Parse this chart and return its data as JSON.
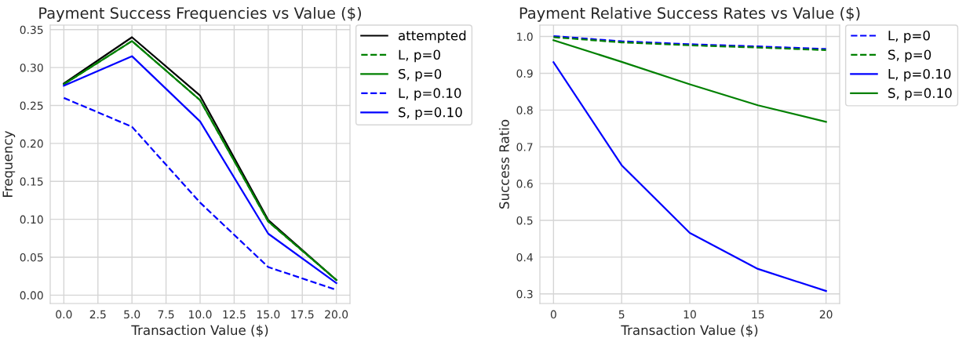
{
  "chart_data": [
    {
      "type": "line",
      "title": "Payment Success Frequencies vs Value ($)",
      "xlabel": "Transaction Value ($)",
      "ylabel": "Frequency",
      "x": [
        0,
        5,
        10,
        15,
        20
      ],
      "series": [
        {
          "name": "attempted",
          "color": "#000000",
          "line_style": "solid",
          "values": [
            0.279,
            0.34,
            0.263,
            0.099,
            0.02
          ]
        },
        {
          "name": "L, p=0",
          "color": "#008000",
          "line_style": "dashed",
          "values": [
            0.278,
            0.335,
            0.257,
            0.097,
            0.02
          ]
        },
        {
          "name": "S, p=0",
          "color": "#008000",
          "line_style": "solid",
          "values": [
            0.278,
            0.335,
            0.257,
            0.097,
            0.02
          ]
        },
        {
          "name": "L, p=0.10",
          "color": "#0000ff",
          "line_style": "dashed",
          "values": [
            0.26,
            0.222,
            0.122,
            0.037,
            0.007
          ]
        },
        {
          "name": "S, p=0.10",
          "color": "#0000ff",
          "line_style": "solid",
          "values": [
            0.276,
            0.315,
            0.229,
            0.081,
            0.016
          ]
        }
      ],
      "xlim": [
        -1.0,
        21.0
      ],
      "xticks": [
        {
          "value": 0,
          "label": "0.0"
        },
        {
          "value": 2.5,
          "label": "2.5"
        },
        {
          "value": 5,
          "label": "5.0"
        },
        {
          "value": 7.5,
          "label": "7.5"
        },
        {
          "value": 10,
          "label": "10.0"
        },
        {
          "value": 12.5,
          "label": "12.5"
        },
        {
          "value": 15,
          "label": "15.0"
        },
        {
          "value": 17.5,
          "label": "17.5"
        },
        {
          "value": 20,
          "label": "20.0"
        }
      ],
      "ylim": [
        -0.011,
        0.356
      ],
      "yticks": [
        {
          "value": 0,
          "label": "0.00"
        },
        {
          "value": 0.05,
          "label": "0.05"
        },
        {
          "value": 0.1,
          "label": "0.10"
        },
        {
          "value": 0.15,
          "label": "0.15"
        },
        {
          "value": 0.2,
          "label": "0.20"
        },
        {
          "value": 0.25,
          "label": "0.25"
        },
        {
          "value": 0.3,
          "label": "0.30"
        },
        {
          "value": 0.35,
          "label": "0.35"
        }
      ],
      "grid": true,
      "legend": "top right",
      "marker": "none"
    },
    {
      "type": "line",
      "title": "Payment Relative Success Rates vs Value ($)",
      "xlabel": "Transaction Value ($)",
      "ylabel": "Success Ratio",
      "x": [
        0,
        5,
        10,
        15,
        20
      ],
      "series": [
        {
          "name": "L, p=0",
          "color": "#0000ff",
          "line_style": "dashed",
          "values": [
            1.001,
            0.987,
            0.979,
            0.973,
            0.966
          ]
        },
        {
          "name": "S, p=0",
          "color": "#008000",
          "line_style": "dashed",
          "values": [
            0.998,
            0.984,
            0.976,
            0.97,
            0.963
          ]
        },
        {
          "name": "L, p=0.10",
          "color": "#0000ff",
          "line_style": "solid",
          "values": [
            0.93,
            0.65,
            0.466,
            0.368,
            0.308
          ]
        },
        {
          "name": "S, p=0.10",
          "color": "#008000",
          "line_style": "solid",
          "values": [
            0.99,
            0.931,
            0.87,
            0.813,
            0.768
          ]
        }
      ],
      "xlim": [
        -1.0,
        21.0
      ],
      "xticks": [
        0,
        5,
        10,
        15,
        20
      ],
      "ylim": [
        0.274,
        1.031
      ],
      "yticks": [
        {
          "value": 0.3,
          "label": "0.3"
        },
        {
          "value": 0.4,
          "label": "0.4"
        },
        {
          "value": 0.5,
          "label": "0.5"
        },
        {
          "value": 0.6,
          "label": "0.6"
        },
        {
          "value": 0.7,
          "label": "0.7"
        },
        {
          "value": 0.8,
          "label": "0.8"
        },
        {
          "value": 0.9,
          "label": "0.9"
        },
        {
          "value": 1.0,
          "label": "1.0"
        }
      ],
      "grid": true,
      "legend": "top right",
      "marker": "none"
    }
  ]
}
